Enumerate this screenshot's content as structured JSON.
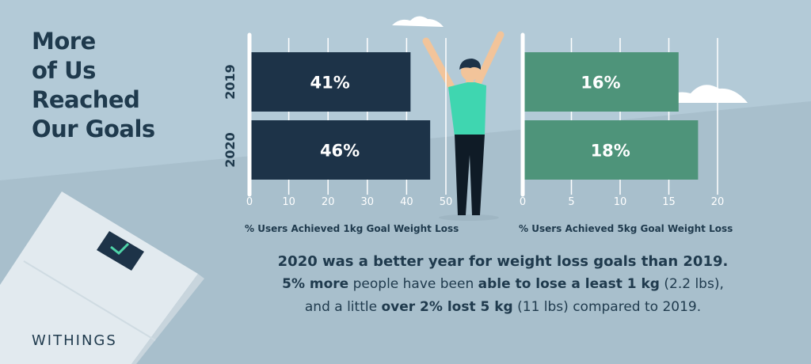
{
  "title_lines": [
    "More",
    "of Us",
    "Reached",
    "Our Goals"
  ],
  "brand": "WITHINGS",
  "colors": {
    "background": "#b3cad7",
    "dark_bar": "#1d3348",
    "green_bar": "#4e947a",
    "text": "#1f3a4d",
    "axis": "#ffffff"
  },
  "chart_data": [
    {
      "type": "bar",
      "orientation": "horizontal",
      "categories": [
        "2019",
        "2020"
      ],
      "values": [
        41,
        46
      ],
      "value_labels": [
        "41%",
        "46%"
      ],
      "xlabel": "% Users Achieved 1kg Goal Weight Loss",
      "xlim": [
        0,
        50
      ],
      "ticks": [
        0,
        10,
        20,
        30,
        40,
        50
      ],
      "grid": true,
      "color": "#1d3348"
    },
    {
      "type": "bar",
      "orientation": "horizontal",
      "categories": [
        "2019",
        "2020"
      ],
      "values": [
        16,
        18
      ],
      "value_labels": [
        "16%",
        "18%"
      ],
      "xlabel": "% Users Achieved 5kg Goal Weight Loss",
      "xlim": [
        0,
        20
      ],
      "ticks": [
        0,
        5,
        10,
        15,
        20
      ],
      "grid": true,
      "color": "#4e947a"
    }
  ],
  "summary": {
    "headline": "2020 was a better year for weight loss goals than 2019.",
    "line2": {
      "bold1": "5% more",
      "text1": " people have been ",
      "bold2": "able to lose a least 1 kg",
      "text2": " (2.2 lbs),"
    },
    "line3": {
      "text1": "and a little ",
      "bold1": "over 2% lost 5 kg",
      "text2": " (11 lbs) compared to 2019."
    }
  }
}
